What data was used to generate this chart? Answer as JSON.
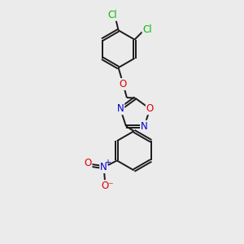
{
  "bg_color": "#ebebeb",
  "bond_color": "#1a1a1a",
  "atom_colors": {
    "O": "#e00000",
    "N": "#0000cc",
    "Cl": "#00bb00",
    "C": "#1a1a1a"
  },
  "lw": 1.4,
  "dbo": 0.055,
  "fs": 8.5
}
